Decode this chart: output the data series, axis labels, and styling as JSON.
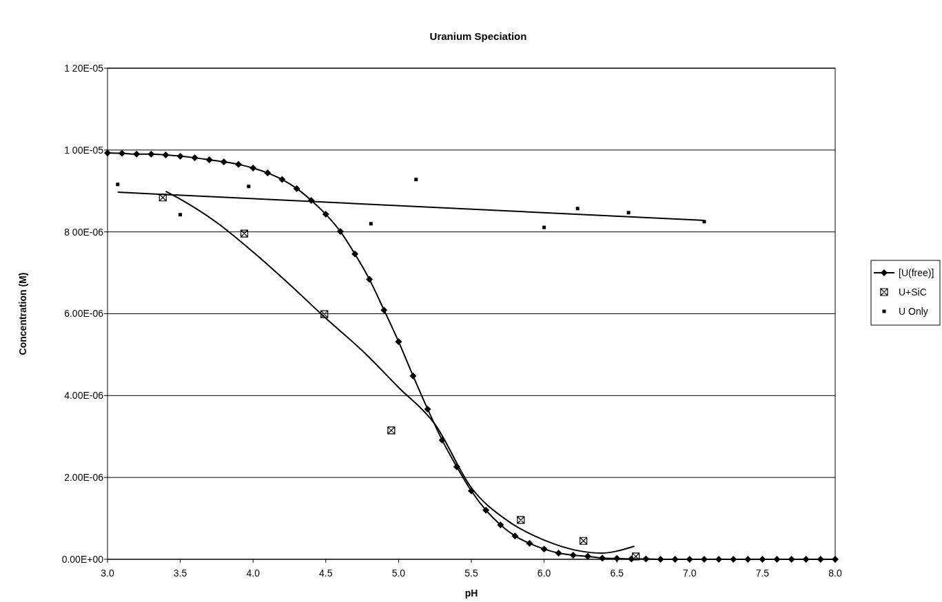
{
  "chart_data": {
    "type": "line",
    "title": "Uranium Speciation",
    "xlabel": "pH",
    "ylabel": "Concentration (M)",
    "xlim": [
      3,
      8
    ],
    "ylim": [
      0,
      1.2e-05
    ],
    "xticks": [
      {
        "value": 3,
        "label": "3.0"
      },
      {
        "value": 3.5,
        "label": "3.5"
      },
      {
        "value": 4,
        "label": "4.0"
      },
      {
        "value": 4.5,
        "label": "4.5"
      },
      {
        "value": 5,
        "label": "5.0"
      },
      {
        "value": 5.5,
        "label": "5.5"
      },
      {
        "value": 6,
        "label": "6.0"
      },
      {
        "value": 6.5,
        "label": "6.5"
      },
      {
        "value": 7,
        "label": "7.0"
      },
      {
        "value": 7.5,
        "label": "7.5"
      },
      {
        "value": 8,
        "label": "8.0"
      }
    ],
    "yticks": [
      {
        "value": 0,
        "label": "0.00E+00"
      },
      {
        "value": 2e-06,
        "label": "2.00E-06"
      },
      {
        "value": 4e-06,
        "label": "4.00E-06"
      },
      {
        "value": 6e-06,
        "label": "6.00E-06"
      },
      {
        "value": 8e-06,
        "label": "8 00E-06"
      },
      {
        "value": 1e-05,
        "label": "1 00E-05"
      },
      {
        "value": 1.2e-05,
        "label": "1 20E-05"
      }
    ],
    "grid": "y",
    "legend": "right",
    "series": [
      {
        "name": "[U(free)]",
        "color": "#000000",
        "marker": "diamond",
        "line_style": "solid",
        "x": [
          3.0,
          3.1,
          3.2,
          3.3,
          3.4,
          3.5,
          3.6,
          3.7,
          3.8,
          3.9,
          4.0,
          4.1,
          4.2,
          4.3,
          4.4,
          4.5,
          4.6,
          4.7,
          4.8,
          4.9,
          5.0,
          5.1,
          5.2,
          5.3,
          5.4,
          5.5,
          5.6,
          5.7,
          5.8,
          5.9,
          6.0,
          6.1,
          6.2,
          6.3,
          6.4,
          6.5,
          6.6,
          6.7,
          6.8,
          6.9,
          7.0,
          7.1,
          7.2,
          7.3,
          7.4,
          7.5,
          7.6,
          7.7,
          7.8,
          7.9,
          8.0
        ],
        "values": [
          9.93e-06,
          9.92e-06,
          9.9e-06,
          9.9e-06,
          9.88e-06,
          9.85e-06,
          9.81e-06,
          9.76e-06,
          9.71e-06,
          9.65e-06,
          9.56e-06,
          9.44e-06,
          9.28e-06,
          9.06e-06,
          8.77e-06,
          8.43e-06,
          8.01e-06,
          7.46e-06,
          6.84e-06,
          6.09e-06,
          5.32e-06,
          4.48e-06,
          3.67e-06,
          2.91e-06,
          2.26e-06,
          1.67e-06,
          1.2e-06,
          8.4e-07,
          5.7e-07,
          3.9e-07,
          2.5e-07,
          1.5e-07,
          1e-07,
          7e-08,
          3e-08,
          2e-08,
          1e-08,
          1e-08,
          0,
          0,
          0,
          0,
          0,
          0,
          0,
          0,
          0,
          0,
          0,
          0,
          0
        ]
      },
      {
        "name": "U+SiC",
        "type": "scatter",
        "color": "#000000",
        "marker": "cross",
        "x": [
          3.38,
          3.94,
          4.49,
          4.95,
          5.84,
          6.27,
          6.63
        ],
        "values": [
          8.84e-06,
          7.96e-06,
          5.99e-06,
          3.15e-06,
          9.6e-07,
          4.5e-07,
          7e-08
        ]
      },
      {
        "name": "U Only",
        "type": "scatter",
        "color": "#000000",
        "marker": "square",
        "x": [
          3.07,
          3.5,
          3.97,
          4.81,
          5.12,
          6.0,
          6.23,
          6.58,
          7.1
        ],
        "values": [
          9.16e-06,
          8.42e-06,
          9.11e-06,
          8.2e-06,
          9.28e-06,
          8.11e-06,
          8.57e-06,
          8.47e-06,
          8.25e-06
        ]
      },
      {
        "color": "#000000",
        "marker": "none",
        "line_style": "solid",
        "x": [
          3.4,
          3.5,
          3.75,
          4.0,
          4.25,
          4.5,
          4.75,
          5.0,
          5.25,
          5.5,
          5.75,
          6.0,
          6.25,
          6.4,
          6.5,
          6.62
        ],
        "values": [
          8.99e-06,
          8.8e-06,
          8.23e-06,
          7.51e-06,
          6.72e-06,
          5.89e-06,
          5.1e-06,
          4.2e-06,
          3.3e-06,
          1.75e-06,
          9.4e-07,
          4.7e-07,
          2e-07,
          1.5e-07,
          2e-07,
          3.2e-07
        ]
      },
      {
        "color": "#000000",
        "marker": "none",
        "line_style": "solid",
        "x": [
          3.07,
          7.1
        ],
        "values": [
          8.97e-06,
          8.28e-06
        ]
      }
    ]
  }
}
